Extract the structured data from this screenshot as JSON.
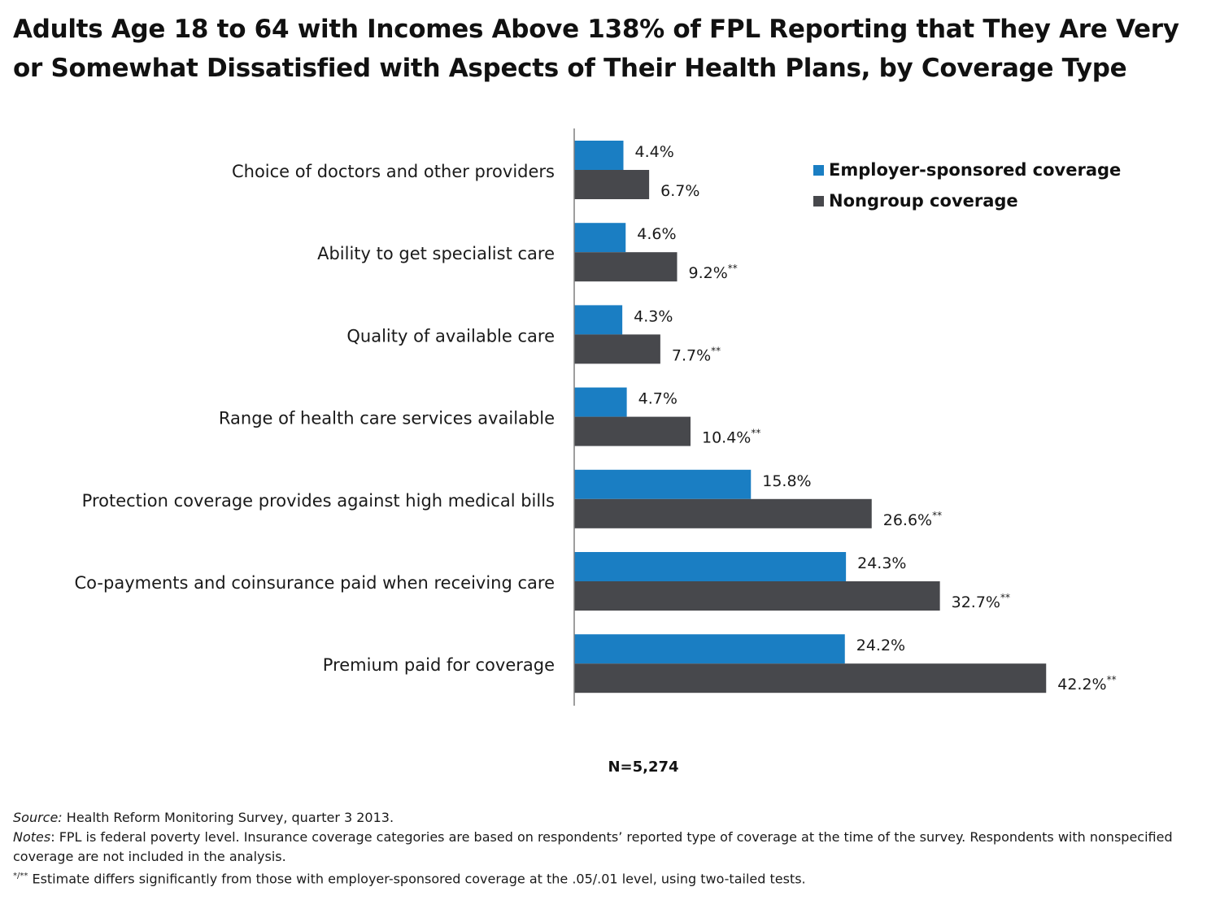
{
  "chart_data": {
    "type": "bar",
    "orientation": "horizontal",
    "title": "Adults Age 18 to 64 with Incomes Above 138% of FPL Reporting that They Are Very or Somewhat Dissatisfied with Aspects of Their Health Plans, by Coverage Type",
    "categories": [
      "Choice of doctors and other providers",
      "Ability to get specialist care",
      "Quality of available care",
      "Range of health care services available",
      "Protection coverage provides against high medical bills",
      "Co-payments and coinsurance paid when receiving care",
      "Premium paid for coverage"
    ],
    "series": [
      {
        "name": "Employer-sponsored coverage",
        "color": "#1a7ec3",
        "values": [
          4.4,
          4.6,
          4.3,
          4.7,
          15.8,
          24.3,
          24.2
        ],
        "labels": [
          "4.4%",
          "4.6%",
          "4.3%",
          "4.7%",
          "15.8%",
          "24.3%",
          "24.2%"
        ],
        "significance": [
          "",
          "",
          "",
          "",
          "",
          "",
          ""
        ]
      },
      {
        "name": "Nongroup coverage",
        "color": "#47484c",
        "values": [
          6.7,
          9.2,
          7.7,
          10.4,
          26.6,
          32.7,
          42.2
        ],
        "labels": [
          "6.7%",
          "9.2%",
          "7.7%",
          "10.4%",
          "26.6%",
          "32.7%",
          "42.2%"
        ],
        "significance": [
          "",
          "**",
          "**",
          "**",
          "**",
          "**",
          "**"
        ]
      }
    ],
    "xlim": [
      0,
      50
    ],
    "grid": false,
    "legend_position": "top-right",
    "sample_size": "N=5,274"
  },
  "footnotes": {
    "source_label": "Source:",
    "source_text": " Health Reform Monitoring Survey, quarter 3 2013.",
    "notes_label": "Notes",
    "notes_text": ": FPL is federal poverty level. Insurance coverage categories are based on respondents’ reported type of coverage at the time of the survey. Respondents with nonspecified coverage are not included in the analysis.",
    "significance_marker": "*/**",
    "significance_text": " Estimate differs significantly from those with employer-sponsored coverage at the .05/.01 level, using two-tailed tests."
  }
}
